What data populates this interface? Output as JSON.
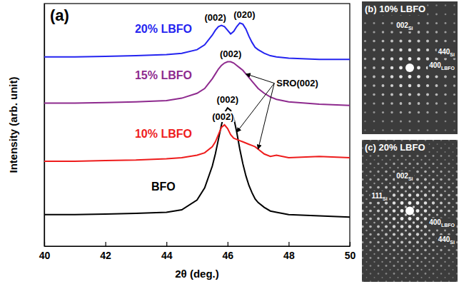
{
  "chart_data": {
    "type": "line",
    "panel_label": "(a)",
    "x_label": "2θ (deg.)",
    "y_label": "Intensity (arb. unit)",
    "xlim": [
      40,
      50
    ],
    "xticks": [
      40,
      42,
      44,
      46,
      48,
      50
    ],
    "ylim": [
      0,
      100
    ],
    "tick_labels": "x",
    "grid": false,
    "x": [
      40,
      41,
      42,
      43,
      44,
      44.5,
      45,
      45.25,
      45.5,
      45.6,
      45.7,
      45.8,
      45.9,
      46,
      46.1,
      46.2,
      46.3,
      46.4,
      46.5,
      46.6,
      46.7,
      46.8,
      46.9,
      47,
      47.2,
      47.4,
      47.6,
      48,
      49,
      50
    ],
    "series": [
      {
        "name": "BFO",
        "color": "#000000",
        "values": [
          13,
          13,
          13.2,
          13.5,
          14,
          15,
          19,
          24,
          33,
          38,
          44,
          50,
          55,
          57,
          56,
          53,
          47,
          40,
          34,
          29,
          25,
          22,
          19.5,
          18,
          16,
          14.5,
          14,
          13,
          12.5,
          12
        ]
      },
      {
        "name": "10% LBFO",
        "color": "#ee1c1c",
        "values": [
          35,
          35,
          35.3,
          35.5,
          36,
          36.5,
          37.5,
          38.5,
          41,
          43,
          46,
          49,
          50,
          48.5,
          46,
          44.5,
          44,
          43.5,
          43,
          42.5,
          42,
          41.5,
          41,
          40,
          38,
          37,
          37.5,
          36.5,
          37,
          36.5
        ]
      },
      {
        "name": "15% LBFO",
        "color": "#8e2a8e",
        "values": [
          59,
          59,
          59.2,
          59.5,
          60,
          61,
          63,
          65,
          69,
          71,
          73,
          74.5,
          75.5,
          76,
          76,
          75.5,
          74.5,
          73.5,
          72.5,
          71,
          69.5,
          68,
          66.5,
          65,
          63,
          61.5,
          60.5,
          59.5,
          58.5,
          58
        ]
      },
      {
        "name": "20% LBFO",
        "color": "#2424f0",
        "values": [
          78,
          78,
          78.2,
          78.5,
          79,
          79.5,
          81,
          83,
          87,
          89,
          90.5,
          91,
          90.5,
          89,
          87.5,
          88.5,
          90.5,
          92,
          91.5,
          89.5,
          86.5,
          84,
          82,
          81,
          79.5,
          78.5,
          78,
          77.5,
          77,
          77
        ]
      }
    ],
    "annotations": [
      {
        "text": "(002)",
        "x": 46,
        "y": 57
      },
      {
        "text": "(002)",
        "x": 45.85,
        "y": 50
      },
      {
        "text": "(002)",
        "x": 46.1,
        "y": 76
      },
      {
        "text": "(002)",
        "x": 45.6,
        "y": 91
      },
      {
        "text": "(020)",
        "x": 46.55,
        "y": 92
      },
      {
        "text": "SRO(002)",
        "x": 47.6,
        "y": 66,
        "arrows": [
          [
            46.6,
            71
          ],
          [
            47,
            40
          ],
          [
            46.3,
            47
          ]
        ]
      }
    ]
  },
  "panels": [
    {
      "title": "(b) 10% LBFO",
      "labels": [
        {
          "text": "002",
          "sub": "Si"
        },
        {
          "text": "440",
          "sub": "Si"
        },
        {
          "text": "400",
          "sub": "LBFO"
        }
      ]
    },
    {
      "title": "(c) 20% LBFO",
      "labels": [
        {
          "text": "002",
          "sub": "Si"
        },
        {
          "text": "111",
          "sub": "Si"
        },
        {
          "text": "400",
          "sub": "LBFO"
        },
        {
          "text": "440",
          "sub": "Si"
        }
      ]
    }
  ]
}
